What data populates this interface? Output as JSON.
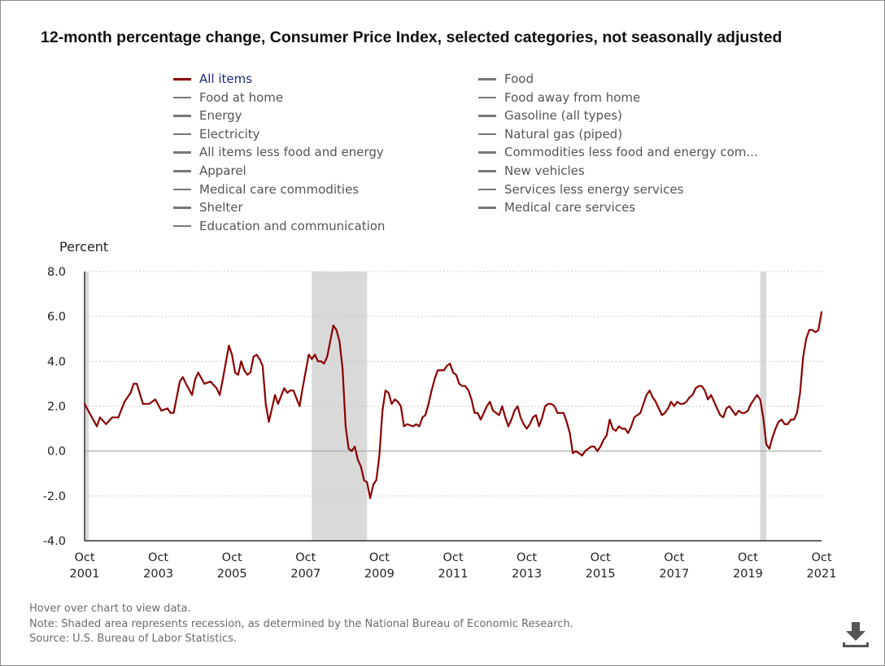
{
  "title": "12-month percentage change, Consumer Price Index, selected categories, not seasonally adjusted",
  "legend": [
    {
      "label": "All items",
      "active": true
    },
    {
      "label": "Food at home",
      "active": false
    },
    {
      "label": "Energy",
      "active": false
    },
    {
      "label": "Electricity",
      "active": false
    },
    {
      "label": "All items less food and energy",
      "active": false
    },
    {
      "label": "Apparel",
      "active": false
    },
    {
      "label": "Medical care commodities",
      "active": false
    },
    {
      "label": "Shelter",
      "active": false
    },
    {
      "label": "Education and communication",
      "active": false
    },
    {
      "label": "Food",
      "active": false
    },
    {
      "label": "Food away from home",
      "active": false
    },
    {
      "label": "Gasoline (all types)",
      "active": false
    },
    {
      "label": "Natural gas (piped)",
      "active": false
    },
    {
      "label": "Commodities less food and energy com...",
      "active": false
    },
    {
      "label": "New vehicles",
      "active": false
    },
    {
      "label": "Services less energy services",
      "active": false
    },
    {
      "label": "Medical care services",
      "active": false
    }
  ],
  "footnotes": [
    "Hover over chart to view data.",
    "Note: Shaded area represents recession, as determined by the National Bureau of Economic Research.",
    "Source: U.S. Bureau of Labor Statistics."
  ],
  "colors": {
    "series": "#8b0000",
    "recession": "#d9d9d9",
    "grid": "#bfbfbf",
    "inactive": "#777777"
  },
  "icons": {
    "download": "download-icon"
  },
  "chart_data": {
    "type": "line",
    "ylabel": "Percent",
    "ylim": [
      -4,
      8
    ],
    "yticks": [
      -4,
      -2,
      0,
      2,
      4,
      6,
      8
    ],
    "ytick_labels": [
      "-4.0",
      "-2.0",
      "0.0",
      "2.0",
      "4.0",
      "6.0",
      "8.0"
    ],
    "x_start": "2001-10",
    "x_end": "2021-10",
    "xticks": [
      {
        "date": "2001-10",
        "month": "Oct",
        "year": "2001"
      },
      {
        "date": "2003-10",
        "month": "Oct",
        "year": "2003"
      },
      {
        "date": "2005-10",
        "month": "Oct",
        "year": "2005"
      },
      {
        "date": "2007-10",
        "month": "Oct",
        "year": "2007"
      },
      {
        "date": "2009-10",
        "month": "Oct",
        "year": "2009"
      },
      {
        "date": "2011-10",
        "month": "Oct",
        "year": "2011"
      },
      {
        "date": "2013-10",
        "month": "Oct",
        "year": "2013"
      },
      {
        "date": "2015-10",
        "month": "Oct",
        "year": "2015"
      },
      {
        "date": "2017-10",
        "month": "Oct",
        "year": "2017"
      },
      {
        "date": "2019-10",
        "month": "Oct",
        "year": "2019"
      },
      {
        "date": "2021-10",
        "month": "Oct",
        "year": "2021"
      }
    ],
    "grid": true,
    "recessions": [
      {
        "start": "2001-10",
        "end": "2001-11"
      },
      {
        "start": "2007-12",
        "end": "2009-06"
      },
      {
        "start": "2020-02",
        "end": "2020-04"
      }
    ],
    "series": [
      {
        "name": "All items",
        "points": [
          [
            "2001-10",
            2.1
          ],
          [
            "2001-12",
            1.6
          ],
          [
            "2002-02",
            1.1
          ],
          [
            "2002-03",
            1.5
          ],
          [
            "2002-05",
            1.2
          ],
          [
            "2002-07",
            1.5
          ],
          [
            "2002-09",
            1.5
          ],
          [
            "2002-11",
            2.2
          ],
          [
            "2003-01",
            2.6
          ],
          [
            "2003-02",
            3.0
          ],
          [
            "2003-03",
            3.0
          ],
          [
            "2003-05",
            2.1
          ],
          [
            "2003-07",
            2.1
          ],
          [
            "2003-09",
            2.3
          ],
          [
            "2003-11",
            1.8
          ],
          [
            "2004-01",
            1.9
          ],
          [
            "2004-02",
            1.7
          ],
          [
            "2004-03",
            1.7
          ],
          [
            "2004-05",
            3.1
          ],
          [
            "2004-06",
            3.3
          ],
          [
            "2004-07",
            3.0
          ],
          [
            "2004-09",
            2.5
          ],
          [
            "2004-10",
            3.2
          ],
          [
            "2004-11",
            3.5
          ],
          [
            "2005-01",
            3.0
          ],
          [
            "2005-03",
            3.1
          ],
          [
            "2005-05",
            2.8
          ],
          [
            "2005-06",
            2.5
          ],
          [
            "2005-07",
            3.2
          ],
          [
            "2005-09",
            4.7
          ],
          [
            "2005-10",
            4.3
          ],
          [
            "2005-11",
            3.5
          ],
          [
            "2005-12",
            3.4
          ],
          [
            "2006-01",
            4.0
          ],
          [
            "2006-02",
            3.6
          ],
          [
            "2006-03",
            3.4
          ],
          [
            "2006-04",
            3.5
          ],
          [
            "2006-05",
            4.2
          ],
          [
            "2006-06",
            4.3
          ],
          [
            "2006-07",
            4.1
          ],
          [
            "2006-08",
            3.8
          ],
          [
            "2006-09",
            2.1
          ],
          [
            "2006-10",
            1.3
          ],
          [
            "2006-12",
            2.5
          ],
          [
            "2007-01",
            2.1
          ],
          [
            "2007-03",
            2.8
          ],
          [
            "2007-04",
            2.6
          ],
          [
            "2007-05",
            2.7
          ],
          [
            "2007-06",
            2.7
          ],
          [
            "2007-08",
            2.0
          ],
          [
            "2007-09",
            2.8
          ],
          [
            "2007-11",
            4.3
          ],
          [
            "2007-12",
            4.1
          ],
          [
            "2008-01",
            4.3
          ],
          [
            "2008-02",
            4.0
          ],
          [
            "2008-03",
            4.0
          ],
          [
            "2008-04",
            3.9
          ],
          [
            "2008-05",
            4.2
          ],
          [
            "2008-07",
            5.6
          ],
          [
            "2008-08",
            5.4
          ],
          [
            "2008-09",
            4.9
          ],
          [
            "2008-10",
            3.7
          ],
          [
            "2008-11",
            1.1
          ],
          [
            "2008-12",
            0.1
          ],
          [
            "2009-01",
            0.0
          ],
          [
            "2009-02",
            0.2
          ],
          [
            "2009-03",
            -0.4
          ],
          [
            "2009-04",
            -0.7
          ],
          [
            "2009-05",
            -1.3
          ],
          [
            "2009-06",
            -1.4
          ],
          [
            "2009-07",
            -2.1
          ],
          [
            "2009-08",
            -1.5
          ],
          [
            "2009-09",
            -1.3
          ],
          [
            "2009-10",
            -0.2
          ],
          [
            "2009-11",
            1.8
          ],
          [
            "2009-12",
            2.7
          ],
          [
            "2010-01",
            2.6
          ],
          [
            "2010-02",
            2.1
          ],
          [
            "2010-03",
            2.3
          ],
          [
            "2010-04",
            2.2
          ],
          [
            "2010-05",
            2.0
          ],
          [
            "2010-06",
            1.1
          ],
          [
            "2010-07",
            1.2
          ],
          [
            "2010-09",
            1.1
          ],
          [
            "2010-10",
            1.2
          ],
          [
            "2010-11",
            1.1
          ],
          [
            "2010-12",
            1.5
          ],
          [
            "2011-01",
            1.6
          ],
          [
            "2011-02",
            2.1
          ],
          [
            "2011-03",
            2.7
          ],
          [
            "2011-04",
            3.2
          ],
          [
            "2011-05",
            3.6
          ],
          [
            "2011-07",
            3.6
          ],
          [
            "2011-08",
            3.8
          ],
          [
            "2011-09",
            3.9
          ],
          [
            "2011-10",
            3.5
          ],
          [
            "2011-11",
            3.4
          ],
          [
            "2011-12",
            3.0
          ],
          [
            "2012-01",
            2.9
          ],
          [
            "2012-02",
            2.9
          ],
          [
            "2012-03",
            2.7
          ],
          [
            "2012-04",
            2.3
          ],
          [
            "2012-05",
            1.7
          ],
          [
            "2012-06",
            1.7
          ],
          [
            "2012-07",
            1.4
          ],
          [
            "2012-08",
            1.7
          ],
          [
            "2012-09",
            2.0
          ],
          [
            "2012-10",
            2.2
          ],
          [
            "2012-11",
            1.8
          ],
          [
            "2012-12",
            1.7
          ],
          [
            "2013-01",
            1.6
          ],
          [
            "2013-02",
            2.0
          ],
          [
            "2013-03",
            1.5
          ],
          [
            "2013-04",
            1.1
          ],
          [
            "2013-05",
            1.4
          ],
          [
            "2013-06",
            1.8
          ],
          [
            "2013-07",
            2.0
          ],
          [
            "2013-08",
            1.5
          ],
          [
            "2013-09",
            1.2
          ],
          [
            "2013-10",
            1.0
          ],
          [
            "2013-11",
            1.2
          ],
          [
            "2013-12",
            1.5
          ],
          [
            "2014-01",
            1.6
          ],
          [
            "2014-02",
            1.1
          ],
          [
            "2014-03",
            1.5
          ],
          [
            "2014-04",
            2.0
          ],
          [
            "2014-05",
            2.1
          ],
          [
            "2014-06",
            2.1
          ],
          [
            "2014-07",
            2.0
          ],
          [
            "2014-08",
            1.7
          ],
          [
            "2014-09",
            1.7
          ],
          [
            "2014-10",
            1.7
          ],
          [
            "2014-11",
            1.3
          ],
          [
            "2014-12",
            0.8
          ],
          [
            "2015-01",
            -0.1
          ],
          [
            "2015-02",
            0.0
          ],
          [
            "2015-03",
            -0.1
          ],
          [
            "2015-04",
            -0.2
          ],
          [
            "2015-05",
            0.0
          ],
          [
            "2015-06",
            0.1
          ],
          [
            "2015-07",
            0.2
          ],
          [
            "2015-08",
            0.2
          ],
          [
            "2015-09",
            0.0
          ],
          [
            "2015-10",
            0.2
          ],
          [
            "2015-11",
            0.5
          ],
          [
            "2015-12",
            0.7
          ],
          [
            "2016-01",
            1.4
          ],
          [
            "2016-02",
            1.0
          ],
          [
            "2016-03",
            0.9
          ],
          [
            "2016-04",
            1.1
          ],
          [
            "2016-05",
            1.0
          ],
          [
            "2016-06",
            1.0
          ],
          [
            "2016-07",
            0.8
          ],
          [
            "2016-08",
            1.1
          ],
          [
            "2016-09",
            1.5
          ],
          [
            "2016-10",
            1.6
          ],
          [
            "2016-11",
            1.7
          ],
          [
            "2016-12",
            2.1
          ],
          [
            "2017-01",
            2.5
          ],
          [
            "2017-02",
            2.7
          ],
          [
            "2017-03",
            2.4
          ],
          [
            "2017-04",
            2.2
          ],
          [
            "2017-05",
            1.9
          ],
          [
            "2017-06",
            1.6
          ],
          [
            "2017-07",
            1.7
          ],
          [
            "2017-08",
            1.9
          ],
          [
            "2017-09",
            2.2
          ],
          [
            "2017-10",
            2.0
          ],
          [
            "2017-11",
            2.2
          ],
          [
            "2017-12",
            2.1
          ],
          [
            "2018-01",
            2.1
          ],
          [
            "2018-02",
            2.2
          ],
          [
            "2018-03",
            2.4
          ],
          [
            "2018-04",
            2.5
          ],
          [
            "2018-05",
            2.8
          ],
          [
            "2018-06",
            2.9
          ],
          [
            "2018-07",
            2.9
          ],
          [
            "2018-08",
            2.7
          ],
          [
            "2018-09",
            2.3
          ],
          [
            "2018-10",
            2.5
          ],
          [
            "2018-11",
            2.2
          ],
          [
            "2018-12",
            1.9
          ],
          [
            "2019-01",
            1.6
          ],
          [
            "2019-02",
            1.5
          ],
          [
            "2019-03",
            1.9
          ],
          [
            "2019-04",
            2.0
          ],
          [
            "2019-05",
            1.8
          ],
          [
            "2019-06",
            1.6
          ],
          [
            "2019-07",
            1.8
          ],
          [
            "2019-08",
            1.7
          ],
          [
            "2019-09",
            1.7
          ],
          [
            "2019-10",
            1.8
          ],
          [
            "2019-11",
            2.1
          ],
          [
            "2019-12",
            2.3
          ],
          [
            "2020-01",
            2.5
          ],
          [
            "2020-02",
            2.3
          ],
          [
            "2020-03",
            1.5
          ],
          [
            "2020-04",
            0.3
          ],
          [
            "2020-05",
            0.1
          ],
          [
            "2020-06",
            0.6
          ],
          [
            "2020-07",
            1.0
          ],
          [
            "2020-08",
            1.3
          ],
          [
            "2020-09",
            1.4
          ],
          [
            "2020-10",
            1.2
          ],
          [
            "2020-11",
            1.2
          ],
          [
            "2020-12",
            1.4
          ],
          [
            "2021-01",
            1.4
          ],
          [
            "2021-02",
            1.7
          ],
          [
            "2021-03",
            2.6
          ],
          [
            "2021-04",
            4.2
          ],
          [
            "2021-05",
            5.0
          ],
          [
            "2021-06",
            5.4
          ],
          [
            "2021-07",
            5.4
          ],
          [
            "2021-08",
            5.3
          ],
          [
            "2021-09",
            5.4
          ],
          [
            "2021-10",
            6.2
          ]
        ]
      }
    ]
  }
}
